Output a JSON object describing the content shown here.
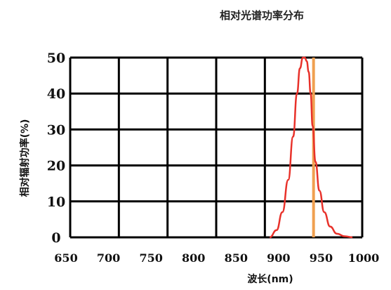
{
  "chart_data": {
    "type": "line",
    "title": "相对光谱功率分布",
    "xlabel": "波长(nm)",
    "ylabel": "相对辐射功率(%)",
    "xlim": [
      650,
      1000
    ],
    "ylim": [
      0,
      50
    ],
    "x_ticks": [
      "650",
      "700",
      "750",
      "800",
      "850",
      "900",
      "950",
      "1000"
    ],
    "y_ticks": [
      "0",
      "10",
      "20",
      "30",
      "40",
      "50"
    ],
    "grid": true,
    "series": [
      {
        "color": "#e8312a",
        "x": [
          905,
          912,
          918,
          924,
          929,
          933,
          936,
          939,
          941,
          943,
          945,
          947,
          949,
          952,
          956,
          961,
          967,
          974,
          982,
          990
        ],
        "y": [
          0,
          2,
          7,
          16,
          28,
          40,
          47,
          50,
          50,
          49,
          46,
          40,
          31,
          21,
          13,
          7,
          3,
          1,
          0.3,
          0
        ]
      }
    ],
    "markers": [
      {
        "x": 950,
        "color": "#f0a050"
      }
    ]
  }
}
